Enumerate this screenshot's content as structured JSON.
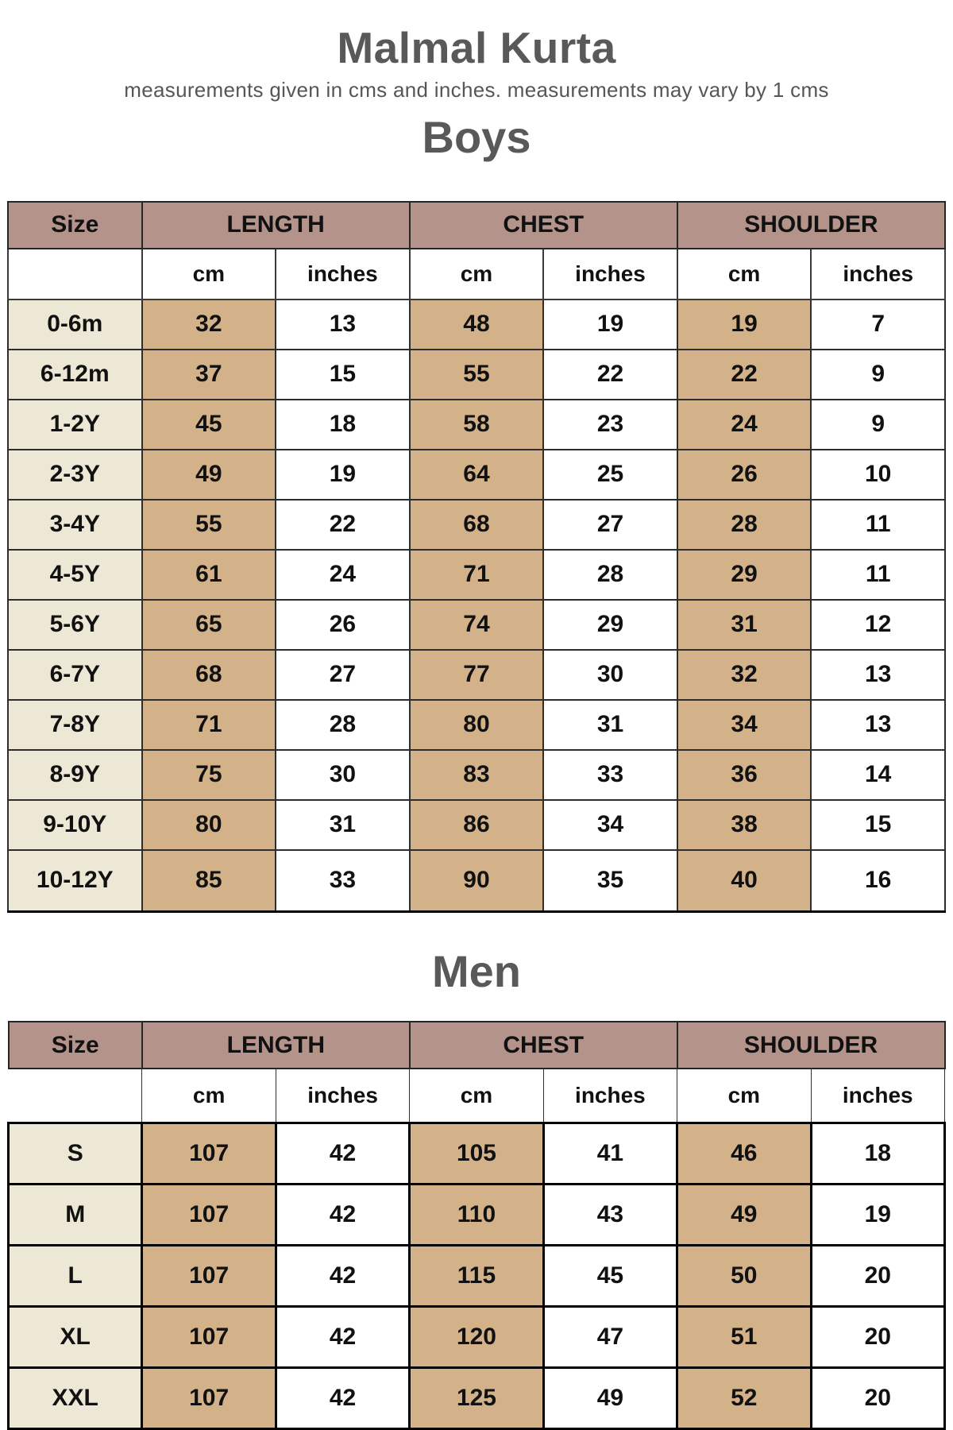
{
  "page": {
    "title": "Malmal Kurta",
    "subtitle": "measurements given in cms and inches. measurements may vary by 1 cms"
  },
  "columns": {
    "size": "Size",
    "length": "LENGTH",
    "chest": "CHEST",
    "shoulder": "SHOULDER",
    "cm": "cm",
    "inches": "inches"
  },
  "boys": {
    "heading": "Boys",
    "rows": [
      [
        "0-6m",
        "32",
        "13",
        "48",
        "19",
        "19",
        "7"
      ],
      [
        "6-12m",
        "37",
        "15",
        "55",
        "22",
        "22",
        "9"
      ],
      [
        "1-2Y",
        "45",
        "18",
        "58",
        "23",
        "24",
        "9"
      ],
      [
        "2-3Y",
        "49",
        "19",
        "64",
        "25",
        "26",
        "10"
      ],
      [
        "3-4Y",
        "55",
        "22",
        "68",
        "27",
        "28",
        "11"
      ],
      [
        "4-5Y",
        "61",
        "24",
        "71",
        "28",
        "29",
        "11"
      ],
      [
        "5-6Y",
        "65",
        "26",
        "74",
        "29",
        "31",
        "12"
      ],
      [
        "6-7Y",
        "68",
        "27",
        "77",
        "30",
        "32",
        "13"
      ],
      [
        "7-8Y",
        "71",
        "28",
        "80",
        "31",
        "34",
        "13"
      ],
      [
        "8-9Y",
        "75",
        "30",
        "83",
        "33",
        "36",
        "14"
      ],
      [
        "9-10Y",
        "80",
        "31",
        "86",
        "34",
        "38",
        "15"
      ],
      [
        "10-12Y",
        "85",
        "33",
        "90",
        "35",
        "40",
        "16"
      ]
    ]
  },
  "men": {
    "heading": "Men",
    "rows": [
      [
        "S",
        "107",
        "42",
        "105",
        "41",
        "46",
        "18"
      ],
      [
        "M",
        "107",
        "42",
        "110",
        "43",
        "49",
        "19"
      ],
      [
        "L",
        "107",
        "42",
        "115",
        "45",
        "50",
        "20"
      ],
      [
        "XL",
        "107",
        "42",
        "120",
        "47",
        "51",
        "20"
      ],
      [
        "XXL",
        "107",
        "42",
        "125",
        "49",
        "52",
        "20"
      ]
    ]
  },
  "colors": {
    "header_bg": "#b4938b",
    "size_column_bg": "#ece8d5",
    "cm_column_bg": "#d3b28a",
    "heading_text": "#58595b",
    "table_text": "#111111"
  }
}
